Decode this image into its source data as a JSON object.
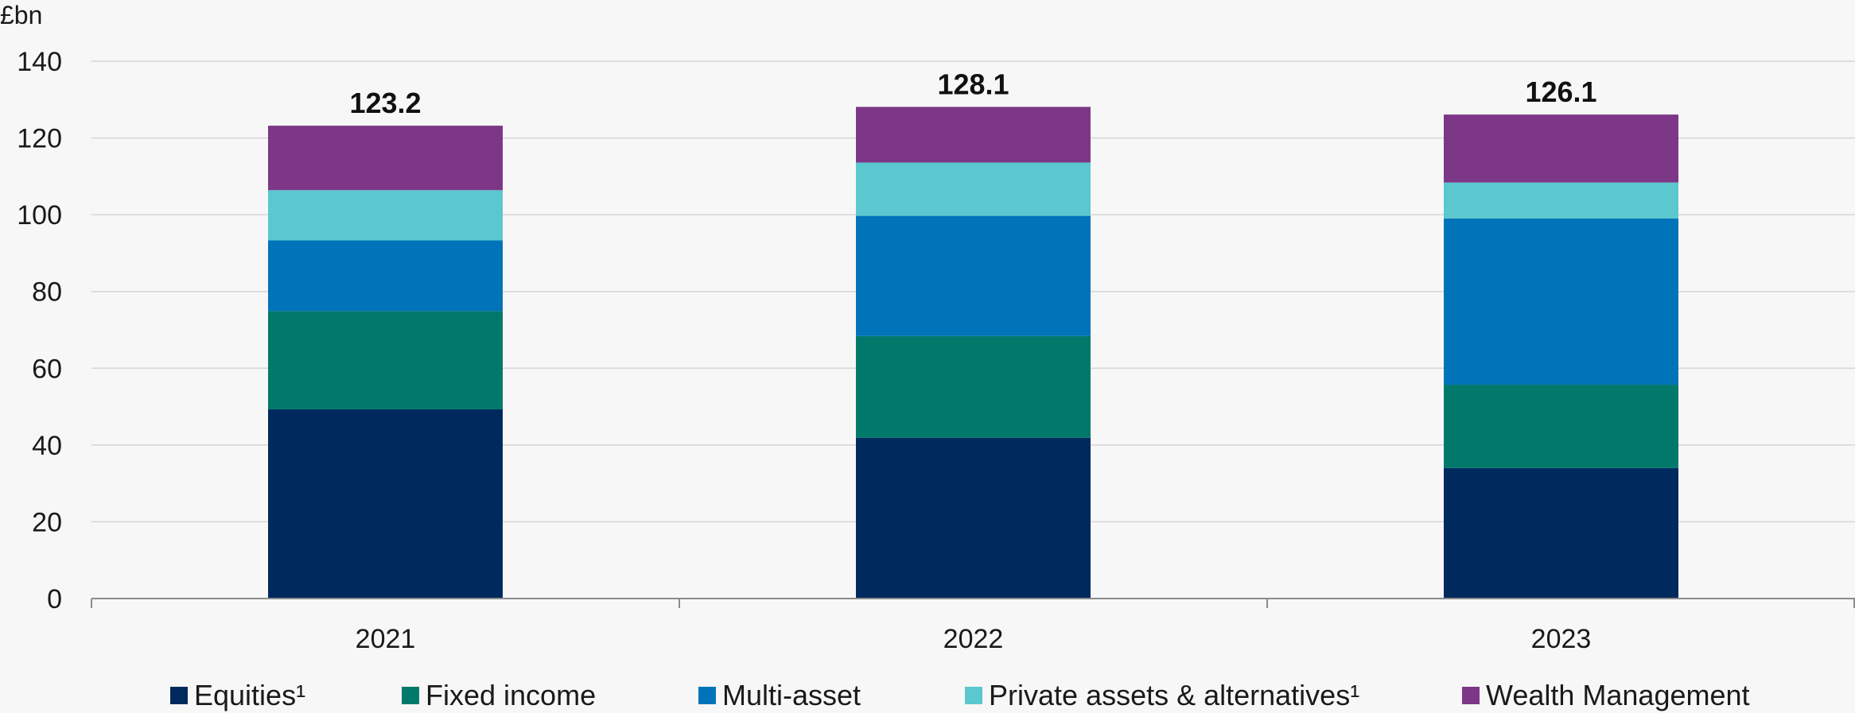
{
  "chart_data": {
    "type": "bar",
    "stacked": true,
    "unit_label": "£bn",
    "categories": [
      "2021",
      "2022",
      "2023"
    ],
    "series": [
      {
        "name": "Equities¹",
        "color": "#002a5e",
        "values": [
          49.3,
          41.9,
          34.0
        ]
      },
      {
        "name": "Fixed income",
        "color": "#00796b",
        "values": [
          25.6,
          26.5,
          21.7
        ]
      },
      {
        "name": "Multi-asset",
        "color": "#0073b9",
        "values": [
          18.4,
          31.3,
          43.3
        ]
      },
      {
        "name": "Private assets & alternatives¹",
        "color": "#5bc7ce",
        "values": [
          13.1,
          13.9,
          9.4
        ]
      },
      {
        "name": "Wealth Management",
        "color": "#7d3787",
        "values": [
          16.8,
          14.5,
          17.7
        ]
      }
    ],
    "totals": [
      "123.2",
      "128.1",
      "126.1"
    ],
    "ylim": [
      0,
      140
    ],
    "yticks": [
      "0",
      "20",
      "40",
      "60",
      "80",
      "100",
      "120",
      "140"
    ],
    "grid": true,
    "legend_position": "bottom"
  }
}
